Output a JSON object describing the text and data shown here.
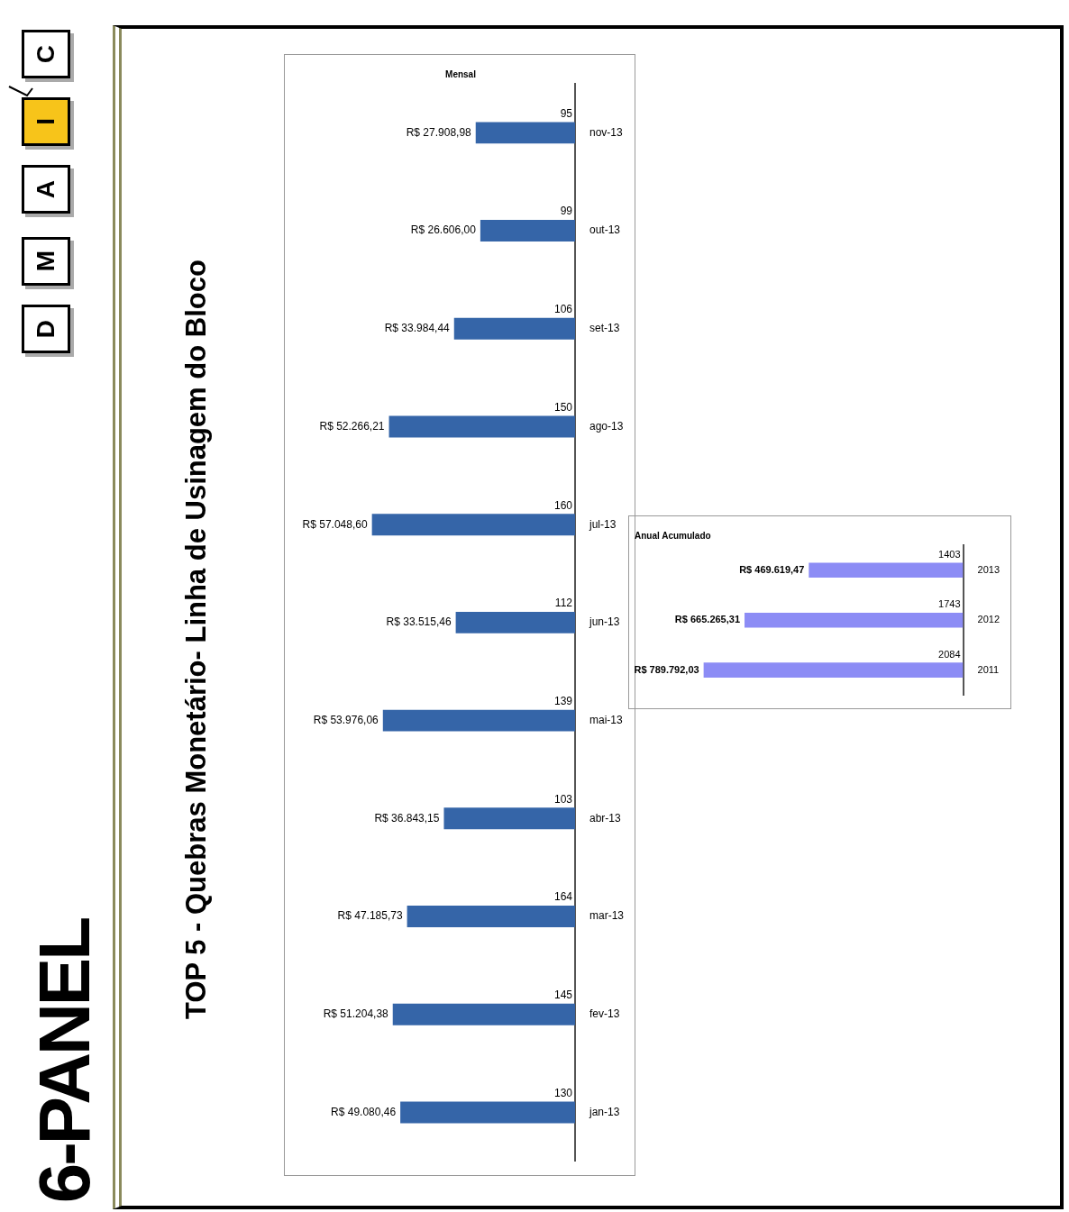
{
  "chart_data": [
    {
      "type": "other",
      "title": "6-PANEL",
      "subtitle": "TOP 5 - Quebras Monetário- Linha de Usinagem do Bloco",
      "annotations": [
        "D",
        "M",
        "A",
        "I",
        "C"
      ]
    },
    {
      "type": "bar",
      "orientation": "horizontal",
      "title": "Mensal",
      "categories": [
        "nov-13",
        "out-13",
        "set-13",
        "ago-13",
        "jul-13",
        "jun-13",
        "mai-13",
        "abr-13",
        "mar-13",
        "fev-13",
        "jan-13"
      ],
      "values": [
        27908.98,
        26606.0,
        33984.44,
        52266.21,
        57048.6,
        33515.46,
        53976.06,
        36843.15,
        47185.73,
        51204.38,
        49080.46
      ],
      "value_labels": [
        "R$ 27.908,98",
        "R$ 26.606,00",
        "R$ 33.984,44",
        "R$ 52.266,21",
        "R$ 57.048,60",
        "R$ 33.515,46",
        "R$ 53.976,06",
        "R$ 36.843,15",
        "R$ 47.185,73",
        "R$ 51.204,38",
        "R$ 49.080,46"
      ],
      "color": "#3565a8",
      "annotations": [
        "95",
        "99",
        "106",
        "150",
        "160",
        "112",
        "139",
        "103",
        "164",
        "145",
        "130"
      ]
    },
    {
      "type": "bar",
      "orientation": "horizontal",
      "title": "Anual Acumulado",
      "categories": [
        "2013",
        "2012",
        "2011"
      ],
      "values": [
        469619.47,
        665265.31,
        789792.03
      ],
      "value_labels": [
        "R$ 469.619,47",
        "R$ 665.265,31",
        "R$ 789.792,03"
      ],
      "color": "#8c8cf5",
      "annotations": [
        "1403",
        "1743",
        "2084"
      ]
    }
  ]
}
